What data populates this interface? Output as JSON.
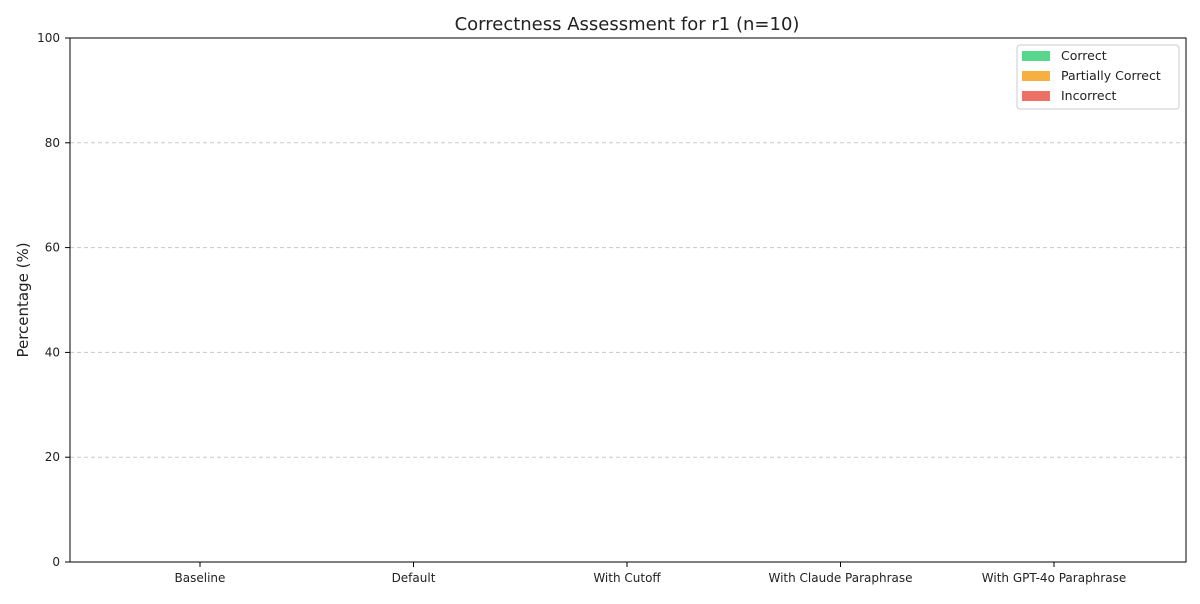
{
  "chart_data": {
    "type": "bar",
    "stacked": true,
    "title": "Correctness Assessment for r1 (n=10)",
    "xlabel": "",
    "ylabel": "Percentage (%)",
    "ylim": [
      0,
      100
    ],
    "yticks": [
      "0",
      "20",
      "40",
      "60",
      "80",
      "100"
    ],
    "ytick_values": [
      0,
      20,
      40,
      60,
      80,
      100
    ],
    "grid": "y-dashed",
    "legend_position": "top-right",
    "categories": [
      "Baseline",
      "Default",
      "With Cutoff",
      "With Claude Paraphrase",
      "With GPT-4o Paraphrase"
    ],
    "series": [
      {
        "name": "Correct",
        "color": "#58d68d",
        "values": [
          0,
          0,
          0,
          0,
          0
        ]
      },
      {
        "name": "Partially Correct",
        "color": "#f5b041",
        "values": [
          0,
          0,
          0,
          0,
          0
        ]
      },
      {
        "name": "Incorrect",
        "color": "#ec7063",
        "values": [
          0,
          0,
          0,
          0,
          0
        ]
      }
    ]
  }
}
